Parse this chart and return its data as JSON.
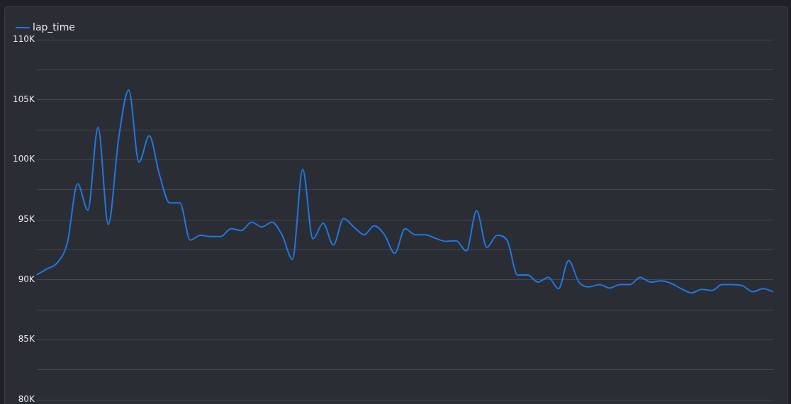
{
  "chart_data": {
    "type": "line",
    "categories": [
      null,
      null,
      null,
      null,
      null,
      null,
      null,
      null,
      null,
      null,
      null,
      null,
      null,
      null,
      null,
      null,
      null,
      null,
      null,
      null,
      null,
      null,
      null,
      null,
      null,
      null,
      null,
      null,
      null,
      null,
      null,
      null,
      null,
      null,
      null,
      null,
      null,
      null,
      null,
      null,
      null,
      null,
      null,
      null,
      null,
      null,
      null,
      null,
      null,
      null,
      null,
      null,
      null,
      null,
      null,
      null,
      null,
      null,
      null,
      null,
      null,
      null,
      null,
      null,
      null,
      null,
      null,
      null,
      null,
      null,
      null,
      null,
      null
    ],
    "series": [
      {
        "name": "lap_time",
        "color": "#1f77e0",
        "values": [
          90400,
          90900,
          91400,
          93100,
          98000,
          95800,
          102700,
          94600,
          101700,
          105800,
          99800,
          102000,
          98750,
          96400,
          96400,
          93300,
          93700,
          93600,
          93600,
          94250,
          94100,
          94800,
          94400,
          94800,
          93700,
          91700,
          99200,
          93400,
          94700,
          92900,
          95100,
          94400,
          93750,
          94500,
          93750,
          92200,
          94250,
          93750,
          93750,
          93450,
          93200,
          93250,
          92400,
          95750,
          92700,
          93700,
          93250,
          90400,
          90400,
          89800,
          90200,
          89250,
          91600,
          89800,
          89400,
          89600,
          89300,
          89600,
          89600,
          90200,
          89800,
          89900,
          89700,
          89250,
          88900,
          89200,
          89100,
          89600,
          89600,
          89500,
          89000,
          89250,
          89000
        ]
      }
    ],
    "ylim": [
      80000,
      110000
    ],
    "yticks": [
      {
        "value": 80000,
        "label": "80K"
      },
      {
        "value": 82500,
        "label": null
      },
      {
        "value": 85000,
        "label": "85K"
      },
      {
        "value": 87500,
        "label": null
      },
      {
        "value": 90000,
        "label": "90K"
      },
      {
        "value": 92500,
        "label": null
      },
      {
        "value": 95000,
        "label": "95K"
      },
      {
        "value": 97500,
        "label": null
      },
      {
        "value": 100000,
        "label": "100K"
      },
      {
        "value": 102500,
        "label": null
      },
      {
        "value": 105000,
        "label": "105K"
      },
      {
        "value": 107500,
        "label": null
      },
      {
        "value": 110000,
        "label": "110K"
      }
    ],
    "grid": "y",
    "legend": "top left",
    "marker": "none",
    "line_style": "solid",
    "tick_labels": "y"
  }
}
